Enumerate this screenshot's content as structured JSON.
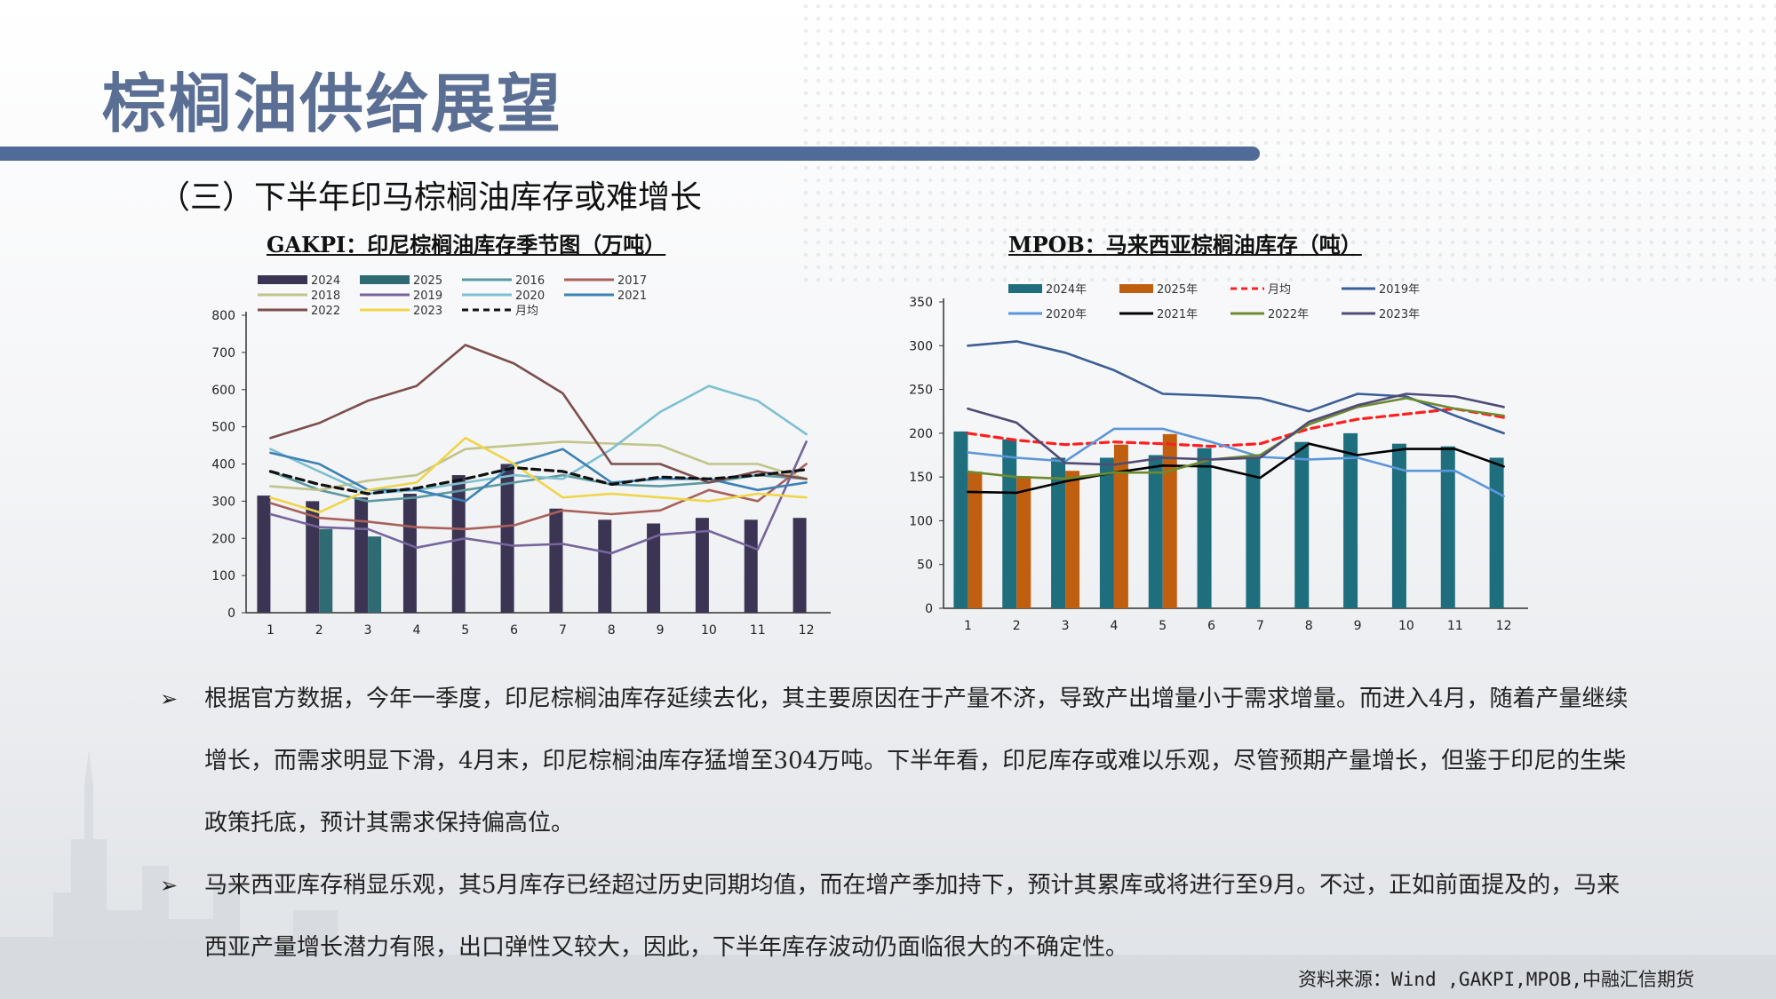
{
  "page": {
    "title": "棕榈油供给展望",
    "subtitle": "（三）下半年印马棕榈油库存或难增长",
    "source": "资料来源：Wind ,GAKPI,MPOB,中融汇信期货",
    "bullets": [
      "根据官方数据，今年一季度，印尼棕榈油库存延续去化，其主要原因在于产量不济，导致产出增量小于需求增量。而进入4月，随着产量继续增长，而需求明显下滑，4月末，印尼棕榈油库存猛增至304万吨。下半年看，印尼库存或难以乐观，尽管预期产量增长，但鉴于印尼的生柴政策托底，预计其需求保持偏高位。",
      "马来西亚库存稍显乐观，其5月库存已经超过历史同期均值，而在增产季加持下，预计其累库或将进行至9月。不过，正如前面提及的，马来西亚产量增长潜力有限，出口弹性又较大，因此，下半年库存波动仍面临很大的不确定性。"
    ],
    "bullet_marker": "➢",
    "colors": {
      "title": "#5a6f93",
      "bar": "#506b98"
    }
  },
  "chart_data": [
    {
      "title": "GAKPI：印尼棕榈油库存季节图（万吨）",
      "type": "bar+line",
      "categories": [
        "1",
        "2",
        "3",
        "4",
        "5",
        "6",
        "7",
        "8",
        "9",
        "10",
        "11",
        "12"
      ],
      "ylim": [
        0,
        800
      ],
      "yticks": [
        0,
        100,
        200,
        300,
        400,
        500,
        600,
        700,
        800
      ],
      "bar_series": [
        {
          "name": "2024",
          "color": "#3b3453",
          "values": [
            315,
            300,
            310,
            320,
            370,
            400,
            280,
            250,
            240,
            255,
            250,
            255
          ]
        },
        {
          "name": "2025",
          "color": "#2e6b73",
          "values": [
            null,
            225,
            205,
            null,
            null,
            null,
            null,
            null,
            null,
            null,
            null,
            null
          ]
        }
      ],
      "line_series": [
        {
          "name": "2016",
          "color": "#5b9aa0",
          "dash": false,
          "values": [
            380,
            330,
            300,
            310,
            330,
            350,
            370,
            345,
            340,
            350,
            370,
            360
          ]
        },
        {
          "name": "2017",
          "color": "#a8615a",
          "dash": false,
          "values": [
            295,
            255,
            245,
            230,
            225,
            235,
            275,
            265,
            275,
            330,
            300,
            400
          ]
        },
        {
          "name": "2018",
          "color": "#c2c48a",
          "dash": false,
          "values": [
            340,
            330,
            355,
            370,
            440,
            450,
            460,
            455,
            450,
            400,
            400,
            360
          ]
        },
        {
          "name": "2019",
          "color": "#76649c",
          "dash": false,
          "values": [
            265,
            230,
            225,
            175,
            200,
            180,
            185,
            160,
            210,
            220,
            170,
            460
          ]
        },
        {
          "name": "2020",
          "color": "#7ec0d0",
          "dash": false,
          "values": [
            440,
            380,
            320,
            330,
            350,
            370,
            360,
            440,
            540,
            610,
            570,
            480
          ]
        },
        {
          "name": "2021",
          "color": "#3c81b6",
          "dash": false,
          "values": [
            430,
            400,
            330,
            330,
            300,
            400,
            440,
            350,
            360,
            360,
            330,
            350
          ]
        },
        {
          "name": "2022",
          "color": "#7d4e4e",
          "dash": false,
          "values": [
            470,
            510,
            570,
            610,
            720,
            670,
            590,
            400,
            400,
            350,
            380,
            360
          ]
        },
        {
          "name": "2023",
          "color": "#f0d54a",
          "dash": false,
          "values": [
            310,
            270,
            330,
            350,
            470,
            400,
            310,
            320,
            310,
            300,
            320,
            310
          ]
        },
        {
          "name": "月均",
          "color": "#111111",
          "dash": true,
          "values": [
            380,
            345,
            320,
            335,
            360,
            390,
            380,
            345,
            365,
            360,
            370,
            385
          ]
        }
      ]
    },
    {
      "title": "MPOB：马来西亚棕榈油库存（吨）",
      "type": "bar+line",
      "categories": [
        "1",
        "2",
        "3",
        "4",
        "5",
        "6",
        "7",
        "8",
        "9",
        "10",
        "11",
        "12"
      ],
      "ylim": [
        0,
        350
      ],
      "yticks": [
        0,
        50,
        100,
        150,
        200,
        250,
        300,
        350
      ],
      "bar_series": [
        {
          "name": "2024年",
          "color": "#1f6e7e",
          "values": [
            202,
            193,
            172,
            172,
            175,
            183,
            172,
            190,
            200,
            188,
            185,
            172
          ]
        },
        {
          "name": "2025年",
          "color": "#c05f10",
          "values": [
            156,
            151,
            157,
            187,
            199,
            null,
            null,
            null,
            null,
            null,
            null,
            null
          ]
        }
      ],
      "line_series": [
        {
          "name": "月均",
          "color": "#ff1f1f",
          "dash": true,
          "values": [
            200,
            192,
            187,
            190,
            188,
            185,
            188,
            205,
            216,
            222,
            228,
            218
          ]
        },
        {
          "name": "2019年",
          "color": "#3a5e95",
          "dash": false,
          "values": [
            300,
            305,
            292,
            272,
            245,
            243,
            240,
            225,
            245,
            242,
            220,
            200
          ]
        },
        {
          "name": "2020年",
          "color": "#5b96d8",
          "dash": false,
          "values": [
            178,
            172,
            168,
            205,
            205,
            190,
            173,
            170,
            172,
            157,
            157,
            128
          ]
        },
        {
          "name": "2021年",
          "color": "#000000",
          "dash": false,
          "values": [
            133,
            132,
            145,
            155,
            163,
            162,
            149,
            188,
            175,
            182,
            182,
            162
          ]
        },
        {
          "name": "2022年",
          "color": "#6e8a2f",
          "dash": false,
          "values": [
            156,
            150,
            148,
            155,
            155,
            170,
            175,
            210,
            230,
            240,
            228,
            220
          ]
        },
        {
          "name": "2023年",
          "color": "#4f4b75",
          "dash": false,
          "values": [
            228,
            212,
            166,
            164,
            172,
            170,
            172,
            213,
            232,
            245,
            242,
            230
          ]
        }
      ]
    }
  ]
}
